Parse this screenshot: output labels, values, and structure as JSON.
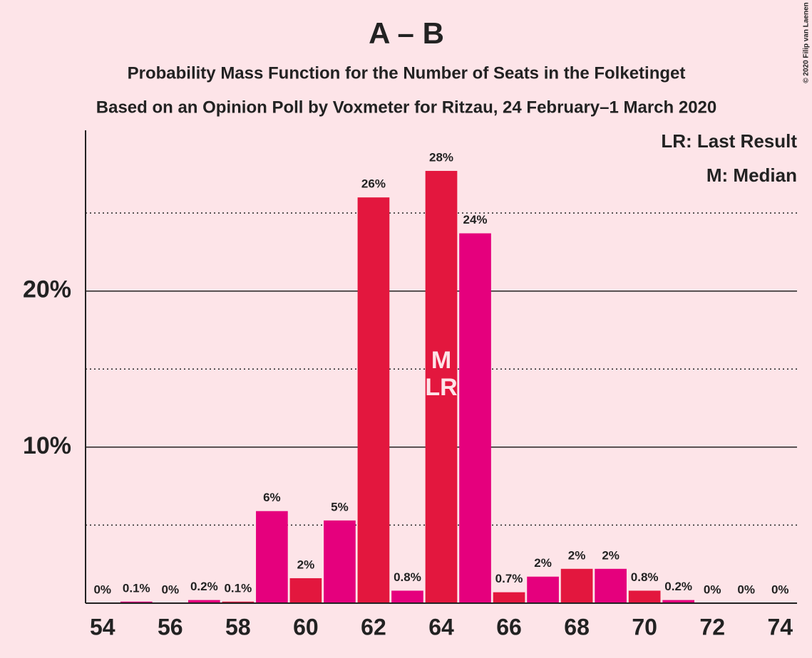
{
  "chart_data": {
    "type": "bar",
    "title": "A – B",
    "subtitle": [
      "Probability Mass Function for the Number of Seats in the Folketinget",
      "Based on an Opinion Poll by Voxmeter for Ritzau, 24 February–1 March 2020"
    ],
    "copyright": "© 2020 Filip van Laenen",
    "x": [
      54,
      55,
      56,
      57,
      58,
      59,
      60,
      61,
      62,
      63,
      64,
      65,
      66,
      67,
      68,
      69,
      70,
      71,
      72,
      73,
      74
    ],
    "values": [
      0,
      0.1,
      0,
      0.2,
      0.1,
      5.9,
      1.6,
      5.3,
      26.0,
      0.8,
      27.7,
      23.7,
      0.7,
      1.7,
      2.2,
      2.2,
      0.8,
      0.2,
      0,
      0,
      0
    ],
    "value_labels": [
      "0%",
      "0.1%",
      "0%",
      "0.2%",
      "0.1%",
      "6%",
      "2%",
      "5%",
      "26%",
      "0.8%",
      "28%",
      "24%",
      "0.7%",
      "2%",
      "2%",
      "2%",
      "0.8%",
      "0.2%",
      "0%",
      "0%",
      "0%"
    ],
    "colors": [
      "#e3173e",
      "#e5007d",
      "#e3173e",
      "#e5007d",
      "#e3173e",
      "#e5007d",
      "#e3173e",
      "#e5007d",
      "#e3173e",
      "#e5007d",
      "#e3173e",
      "#e5007d",
      "#e3173e",
      "#e5007d",
      "#e3173e",
      "#e5007d",
      "#e3173e",
      "#e5007d",
      "#e3173e",
      "#e5007d",
      "#e3173e"
    ],
    "xlim": [
      53.5,
      74.5
    ],
    "xticks": [
      54,
      56,
      58,
      60,
      62,
      64,
      66,
      68,
      70,
      72,
      74
    ],
    "ylim": [
      0,
      30.3
    ],
    "yticks": [
      {
        "value": 10,
        "label": "10%"
      },
      {
        "value": 20,
        "label": "20%"
      }
    ],
    "minor_yticks": [
      5,
      15,
      25
    ],
    "annotations": [
      {
        "text": "M",
        "x": 64
      },
      {
        "text": "LR",
        "x": 64
      }
    ],
    "legend_notes": [
      "LR: Last Result",
      "M: Median"
    ]
  }
}
